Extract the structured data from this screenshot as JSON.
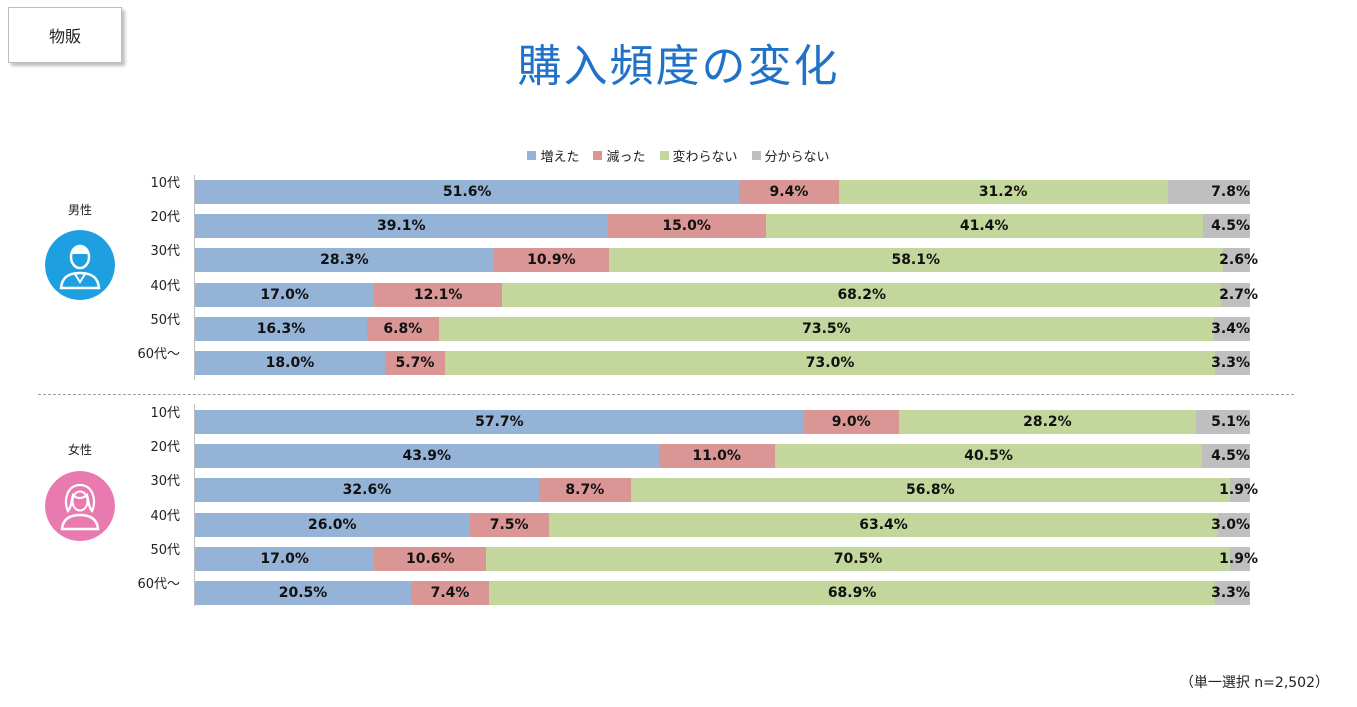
{
  "header": {
    "tag_label": "物販",
    "title": "購入頻度の変化"
  },
  "footnote": "（単一選択 n=2,502）",
  "colors": {
    "increased": "#95b3d7",
    "decreased": "#d99694",
    "unchanged": "#c3d69b",
    "unknown": "#bfbfbf",
    "title": "#1f72c8",
    "male_icon": "#1ea0e0",
    "female_icon": "#e97ab0"
  },
  "chart_data": {
    "type": "bar",
    "orientation": "horizontal",
    "stacked": true,
    "percent_stacked": true,
    "title": "購入頻度の変化",
    "legend": {
      "placement": "top-center",
      "entries": [
        "増えた",
        "減った",
        "変わらない",
        "分からない"
      ]
    },
    "series_names": [
      "増えた",
      "減った",
      "変わらない",
      "分からない"
    ],
    "groups": [
      {
        "name": "男性",
        "icon": "male-user-icon",
        "categories": [
          "10代",
          "20代",
          "30代",
          "40代",
          "50代",
          "60代～"
        ],
        "rows": [
          {
            "category": "10代",
            "values": [
              51.6,
              9.4,
              31.2,
              7.8
            ],
            "labels": [
              "51.6%",
              "9.4%",
              "31.2%",
              "7.8%"
            ]
          },
          {
            "category": "20代",
            "values": [
              39.1,
              15.0,
              41.4,
              4.5
            ],
            "labels": [
              "39.1%",
              "15.0%",
              "41.4%",
              "4.5%"
            ]
          },
          {
            "category": "30代",
            "values": [
              28.3,
              10.9,
              58.1,
              2.6
            ],
            "labels": [
              "28.3%",
              "10.9%",
              "58.1%",
              "2.6%"
            ]
          },
          {
            "category": "40代",
            "values": [
              17.0,
              12.1,
              68.2,
              2.7
            ],
            "labels": [
              "17.0%",
              "12.1%",
              "68.2%",
              "2.7%"
            ]
          },
          {
            "category": "50代",
            "values": [
              16.3,
              6.8,
              73.5,
              3.4
            ],
            "labels": [
              "16.3%",
              "6.8%",
              "73.5%",
              "3.4%"
            ]
          },
          {
            "category": "60代～",
            "values": [
              18.0,
              5.7,
              73.0,
              3.3
            ],
            "labels": [
              "18.0%",
              "5.7%",
              "73.0%",
              "3.3%"
            ]
          }
        ]
      },
      {
        "name": "女性",
        "icon": "female-user-icon",
        "categories": [
          "10代",
          "20代",
          "30代",
          "40代",
          "50代",
          "60代～"
        ],
        "rows": [
          {
            "category": "10代",
            "values": [
              57.7,
              9.0,
              28.2,
              5.1
            ],
            "labels": [
              "57.7%",
              "9.0%",
              "28.2%",
              "5.1%"
            ]
          },
          {
            "category": "20代",
            "values": [
              43.9,
              11.0,
              40.5,
              4.5
            ],
            "labels": [
              "43.9%",
              "11.0%",
              "40.5%",
              "4.5%"
            ]
          },
          {
            "category": "30代",
            "values": [
              32.6,
              8.7,
              56.8,
              1.9
            ],
            "labels": [
              "32.6%",
              "8.7%",
              "56.8%",
              "1.9%"
            ]
          },
          {
            "category": "40代",
            "values": [
              26.0,
              7.5,
              63.4,
              3.0
            ],
            "labels": [
              "26.0%",
              "7.5%",
              "63.4%",
              "3.0%"
            ]
          },
          {
            "category": "50代",
            "values": [
              17.0,
              10.6,
              70.5,
              1.9
            ],
            "labels": [
              "17.0%",
              "10.6%",
              "70.5%",
              "1.9%"
            ]
          },
          {
            "category": "60代～",
            "values": [
              20.5,
              7.4,
              68.9,
              3.3
            ],
            "labels": [
              "20.5%",
              "7.4%",
              "68.9%",
              "3.3%"
            ]
          }
        ]
      }
    ],
    "xlim": [
      0,
      100
    ]
  }
}
